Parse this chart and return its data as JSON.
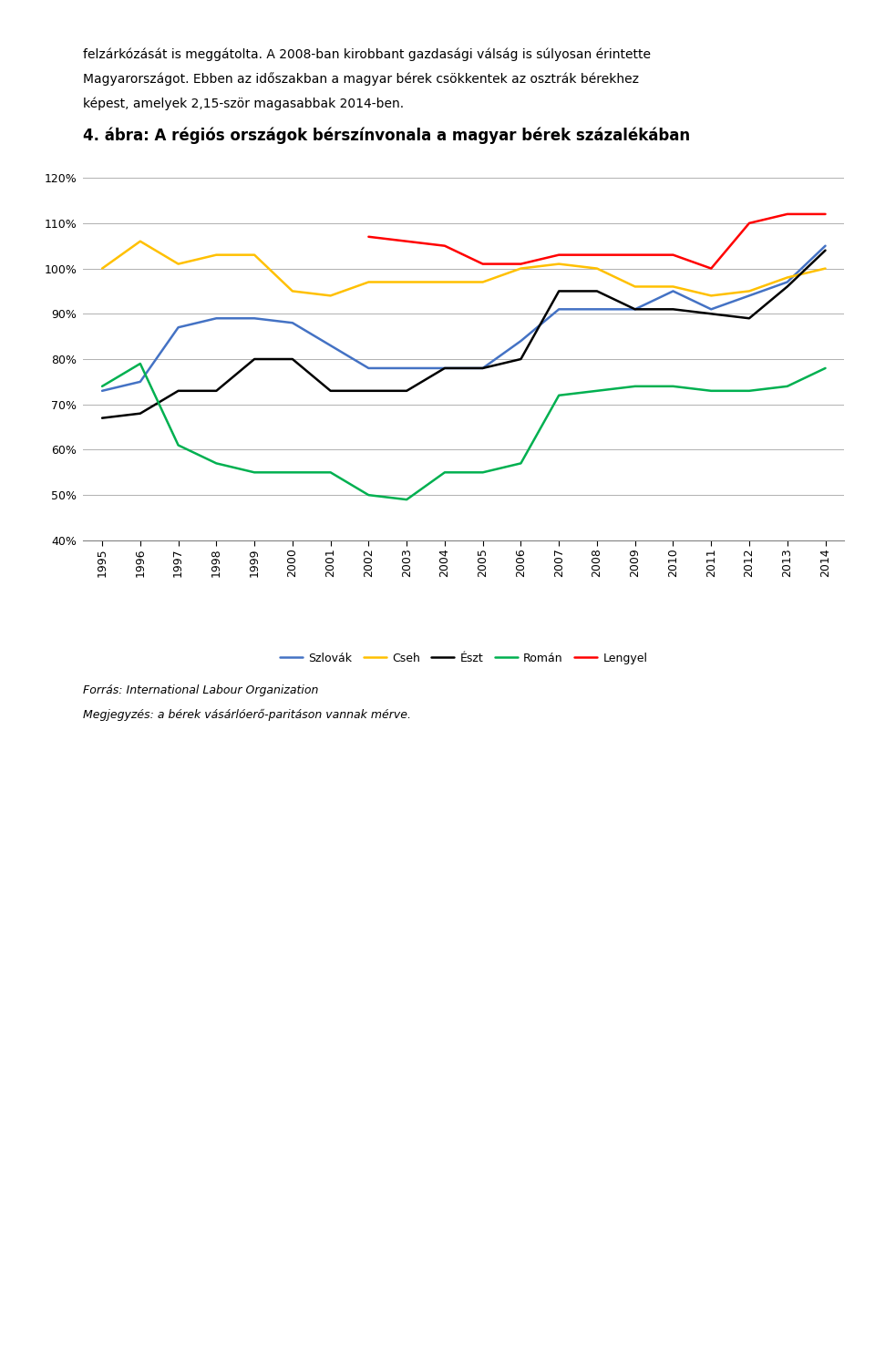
{
  "title": "4. ábra: A régiós országok bérszínvonala a magyar bérek százalékában",
  "years": [
    1995,
    1996,
    1997,
    1998,
    1999,
    2000,
    2001,
    2002,
    2003,
    2004,
    2005,
    2006,
    2007,
    2008,
    2009,
    2010,
    2011,
    2012,
    2013,
    2014
  ],
  "Slovak": [
    73,
    75,
    87,
    89,
    89,
    88,
    83,
    78,
    78,
    78,
    78,
    84,
    91,
    91,
    91,
    95,
    91,
    94,
    97,
    105
  ],
  "Cseh": [
    100,
    106,
    101,
    103,
    103,
    95,
    94,
    97,
    97,
    97,
    97,
    100,
    101,
    100,
    96,
    96,
    94,
    95,
    98,
    100
  ],
  "Eszt": [
    67,
    68,
    73,
    73,
    80,
    80,
    73,
    73,
    73,
    78,
    78,
    80,
    95,
    95,
    91,
    91,
    90,
    89,
    96,
    104
  ],
  "Roman": [
    74,
    79,
    61,
    57,
    55,
    55,
    55,
    50,
    49,
    55,
    55,
    57,
    72,
    73,
    74,
    74,
    73,
    73,
    74,
    78
  ],
  "Lengyel": [
    null,
    null,
    null,
    null,
    null,
    null,
    null,
    107,
    106,
    105,
    101,
    101,
    103,
    103,
    103,
    103,
    100,
    110,
    112,
    112
  ],
  "colors": {
    "Slovak": "#4472C4",
    "Cseh": "#FFC000",
    "Eszt": "#000000",
    "Roman": "#00B050",
    "Lengyel": "#FF0000"
  },
  "legend_labels": {
    "Slovak": "Szlovák",
    "Cseh": "Cseh",
    "Eszt": "Észt",
    "Roman": "Román",
    "Lengyel": "Lengyel"
  },
  "ylim": [
    40,
    120
  ],
  "yticks": [
    40,
    50,
    60,
    70,
    80,
    90,
    100,
    110,
    120
  ],
  "source_text": "Forrás: International Labour Organization",
  "note_text": "Megjegyzés: a bérek vásárlóerő-paritáson vannak mérve.",
  "top_text_lines": [
    "felzárkózását is meggátolta. A 2008-ban kirobbant gazdasági válság is súlyosan érintette",
    "Magyarországot. Ebben az időszakban a magyar bérek csökkentek az osztrák bérekhez",
    "képest, amelyek 2,15-ször magasabbak 2014-ben."
  ],
  "background_color": "#ffffff",
  "grid_color": "#b0b0b0",
  "title_fontsize": 12,
  "axis_fontsize": 9,
  "legend_fontsize": 9,
  "source_fontsize": 9,
  "body_fontsize": 10,
  "line_width": 1.8
}
